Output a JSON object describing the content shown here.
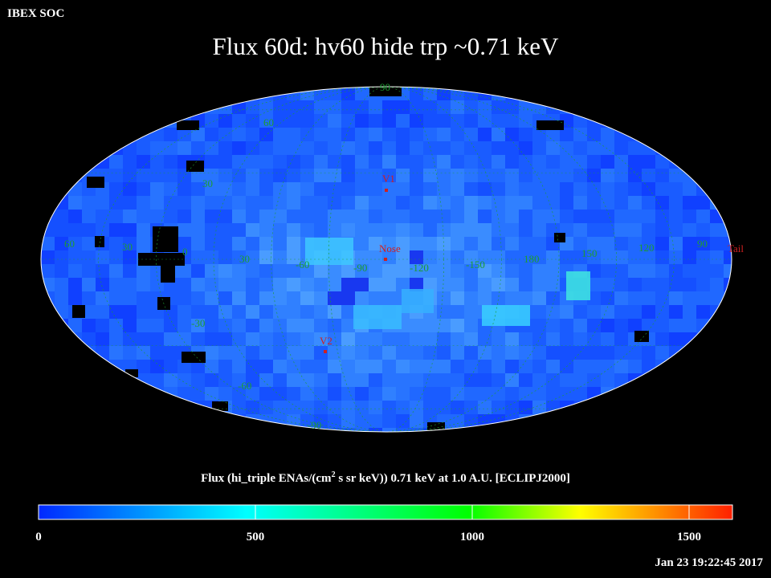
{
  "header": {
    "org": "IBEX SOC",
    "title": "Flux   60d: hv60 hide trp ~0.71 keV",
    "timestamp": "Jan 23 19:22:45 2017"
  },
  "map": {
    "projection": "Aitoff/Hammer (ecliptic)",
    "longitude_labels": [
      "60",
      "30",
      "0",
      "30",
      "-60",
      "-90",
      "-120",
      "-150",
      "180",
      "150",
      "120",
      "90"
    ],
    "latitude_labels": [
      "90",
      "60",
      "30",
      "-30",
      "-60",
      "-90"
    ],
    "markers": {
      "v1": "V1",
      "nose": "Nose",
      "v2": "V2",
      "tail": "Tail"
    },
    "colors": {
      "background": "#000000",
      "map_base": "#1a5cff",
      "grid": "#1d9c32",
      "marker": "#d02020",
      "outline": "#ffffff"
    }
  },
  "colorbar": {
    "title_pre": "Flux (hi_triple ENAs/(cm",
    "title_sup": "2",
    "title_post": " s sr keV))  0.71 keV at 1.0 A.U. [ECLIPJ2000]",
    "ticks": [
      "0",
      "500",
      "1000",
      "1500"
    ],
    "range": [
      0,
      1600
    ],
    "stops": [
      "#0028ff",
      "#00ffff",
      "#00ff00",
      "#ffff00",
      "#ff2000"
    ]
  }
}
